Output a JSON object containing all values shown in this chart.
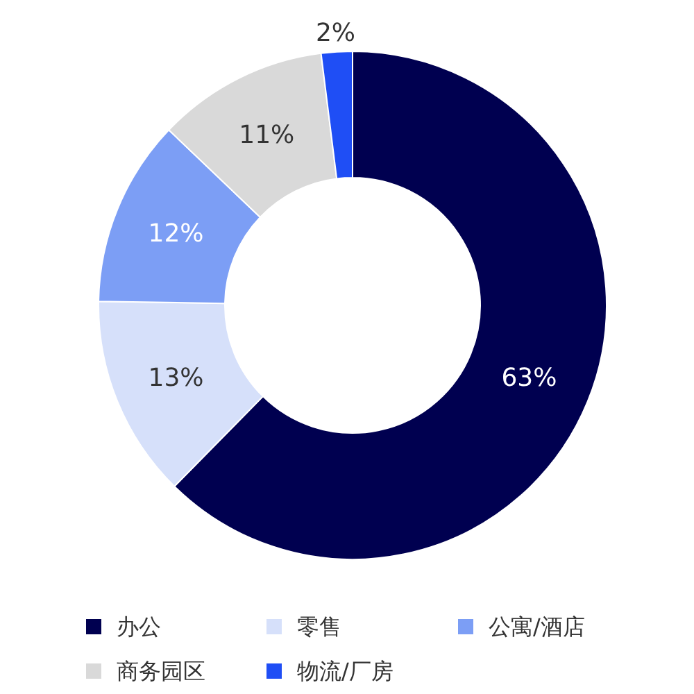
{
  "chart_data": {
    "type": "donut",
    "categories": [
      "办公",
      "零售",
      "公寓/酒店",
      "商务园区",
      "物流/厂房"
    ],
    "values": [
      63,
      13,
      12,
      11,
      2
    ],
    "colors": [
      "#000050",
      "#d6e0fa",
      "#7c9ef5",
      "#d9d9d9",
      "#1f4ef5"
    ],
    "value_labels": [
      "63%",
      "13%",
      "12%",
      "11%",
      "2%"
    ],
    "legend": "bottom"
  }
}
